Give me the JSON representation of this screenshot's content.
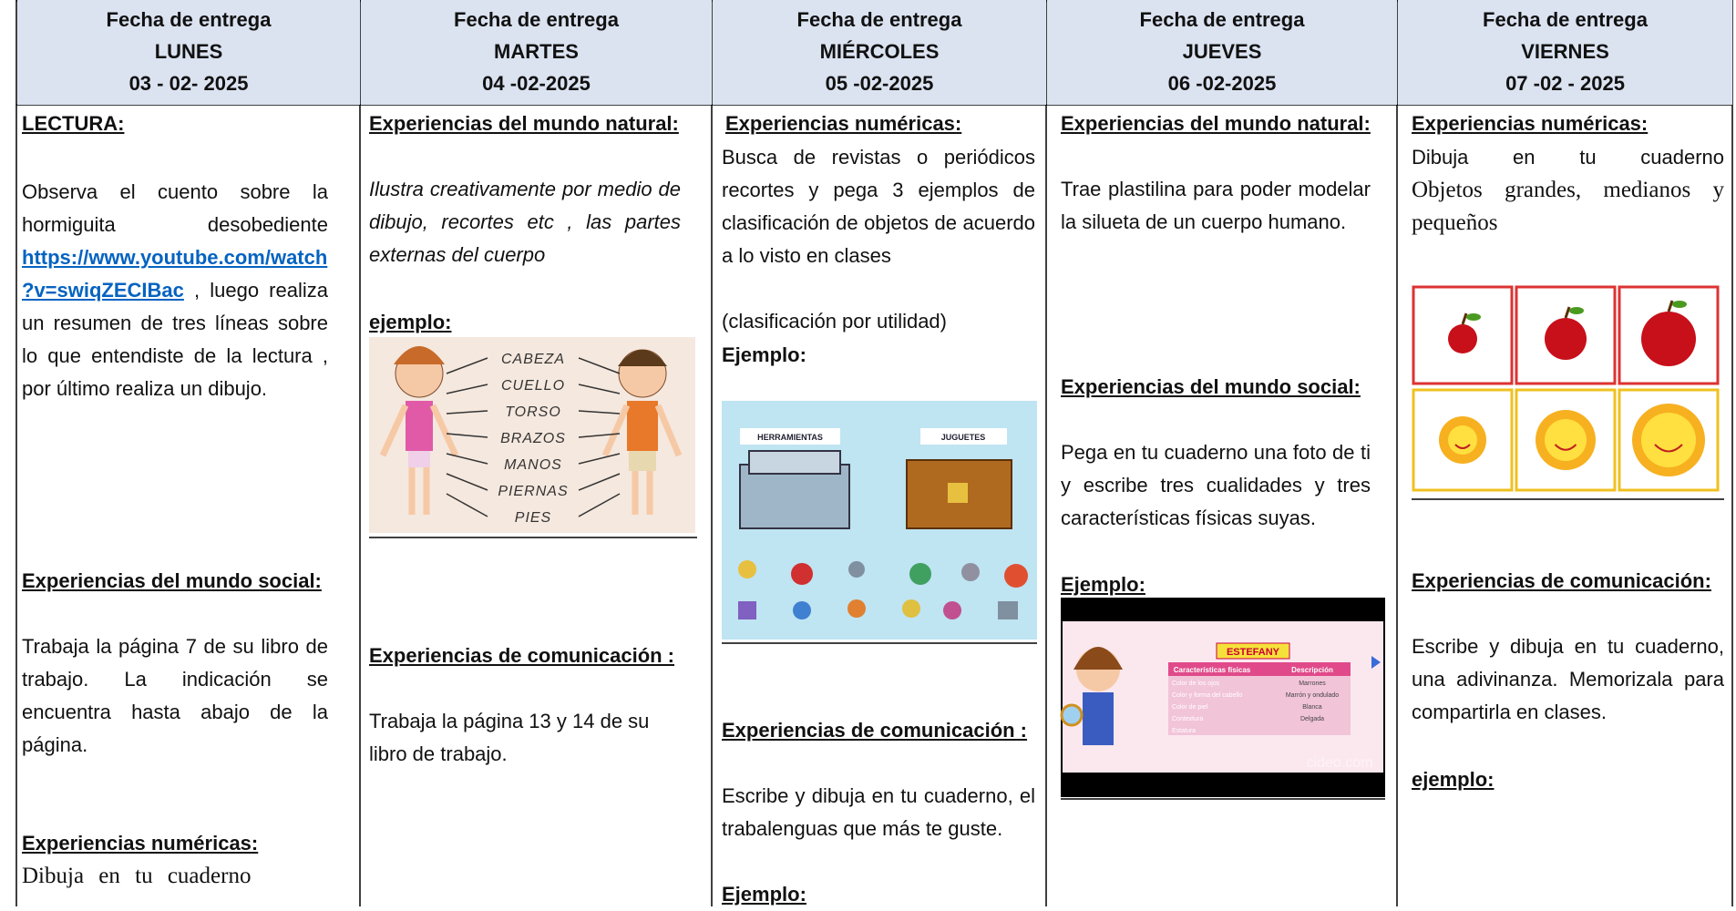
{
  "columns": [
    {
      "label": "Fecha de entrega",
      "day": "LUNES",
      "date": "03 - 02- 2025",
      "blocks": [
        {
          "heading": "LECTURA:",
          "text": "Observa el cuento sobre la hormiguita desobediente",
          "link": "https://www.youtube.com/watch?v=swiqZECIBac",
          "text_after": ", luego realiza un resumen de tres líneas sobre lo que entendiste de la lectura , por último realiza un dibujo."
        },
        {
          "heading": "Experiencias del mundo social:",
          "text": "Trabaja la página 7 de su libro de trabajo. La indicación se encuentra hasta abajo de la página."
        },
        {
          "heading": "Experiencias numéricas:",
          "text": "Dibuja en tu cuaderno"
        }
      ]
    },
    {
      "label": "Fecha de entrega",
      "day": "MARTES",
      "date": "04 -02-2025",
      "blocks": [
        {
          "heading": "Experiencias del mundo natural:",
          "text": "Ilustra creativamente por medio de dibujo, recortes etc , las partes externas del cuerpo",
          "example": "ejemplo:",
          "image_labels": [
            "CABEZA",
            "CUELLO",
            "TORSO",
            "BRAZOS",
            "MANOS",
            "PIERNAS",
            "PIES"
          ]
        },
        {
          "heading": "Experiencias de comunicación :",
          "text": "Trabaja la página 13 y 14 de su libro de trabajo."
        }
      ]
    },
    {
      "label": "Fecha de entrega",
      "day": "MIÉRCOLES",
      "date": "05 -02-2025",
      "blocks": [
        {
          "heading": "Experiencias numéricas:",
          "text": "Busca de revistas o periódicos recortes y pega 3 ejemplos de clasificación de objetos de acuerdo a lo visto en clases",
          "note": "(clasificación por utilidad)",
          "example": "Ejemplo:",
          "image_labels": [
            "HERRAMIENTAS",
            "JUGUETES"
          ]
        },
        {
          "heading": "Experiencias de comunicación :",
          "text": "Escribe y dibuja en tu cuaderno, el trabalenguas que más te guste.",
          "example": "Ejemplo:"
        }
      ]
    },
    {
      "label": "Fecha de entrega",
      "day": "JUEVES",
      "date": "06 -02-2025",
      "blocks": [
        {
          "heading": "Experiencias del mundo natural:",
          "text": "Trae plastilina para poder modelar la silueta de un cuerpo humano."
        },
        {
          "heading": "Experiencias del mundo social:",
          "text": "Pega en tu cuaderno una foto de ti y escribe tres cualidades y tres características físicas suyas.",
          "example": "Ejemplo:",
          "image": {
            "title": "ESTEFANY",
            "header": [
              "Características físicas",
              "Descripción"
            ],
            "rows": [
              [
                "Color de los ojos",
                "Marrones"
              ],
              [
                "Color y forma del cabello",
                "Marrón y ondulado"
              ],
              [
                "Color de piel",
                "Blanca"
              ],
              [
                "Contextura",
                "Delgada"
              ],
              [
                "Estatura"
              ]
            ],
            "watermark": "cideo.com"
          }
        }
      ]
    },
    {
      "label": "Fecha de entrega",
      "day": "VIERNES",
      "date": "07 -02 - 2025",
      "blocks": [
        {
          "heading": "Experiencias numéricas:",
          "text": "Dibuja en tu cuaderno",
          "text_serif": "Objetos grandes, medianos y pequeños"
        },
        {
          "heading": "Experiencias de comunicación:",
          "text": "Escribe y dibuja en tu cuaderno, una adivinanza. Memorizala para compartirla en clases.",
          "example": "ejemplo:"
        }
      ]
    }
  ]
}
